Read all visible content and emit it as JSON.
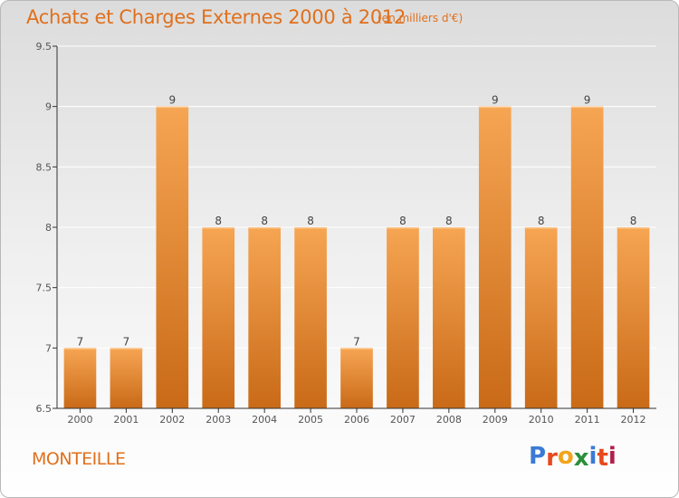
{
  "header": {
    "title": "Achats et Charges Externes 2000 à 2012",
    "subtitle": "(en milliers d'€)"
  },
  "footer": {
    "town": "MONTEILLE",
    "logo_letters": [
      "P",
      "r",
      "o",
      "x",
      "i",
      "t",
      "i"
    ],
    "logo_colors": [
      "#3a7bd5",
      "#e8491d",
      "#f2a51a",
      "#2a8f3a",
      "#3a7bd5",
      "#e8491d",
      "#b01f4a"
    ]
  },
  "colors": {
    "bar_top": "#f6a553",
    "bar_bottom": "#c96a17",
    "title": "#e0701c",
    "axis": "#333333",
    "grid": "#ffffff"
  },
  "chart_data": {
    "type": "bar",
    "categories": [
      "2000",
      "2001",
      "2002",
      "2003",
      "2004",
      "2005",
      "2006",
      "2007",
      "2008",
      "2009",
      "2010",
      "2011",
      "2012"
    ],
    "values": [
      7,
      7,
      9,
      8,
      8,
      8,
      7,
      8,
      8,
      9,
      8,
      9,
      8
    ],
    "data_labels": [
      "7",
      "7",
      "9",
      "8",
      "8",
      "8",
      "7",
      "8",
      "8",
      "9",
      "8",
      "9",
      "8"
    ],
    "title": "Achats et Charges Externes 2000 à 2012",
    "xlabel": "",
    "ylabel": "",
    "ylim": [
      6.5,
      9.5
    ],
    "yticks": [
      6.5,
      7,
      7.5,
      8,
      8.5,
      9,
      9.5
    ],
    "ytick_labels": [
      "6.5",
      "7",
      "7.5",
      "8",
      "8.5",
      "9",
      "9.5"
    ],
    "grid": true
  }
}
